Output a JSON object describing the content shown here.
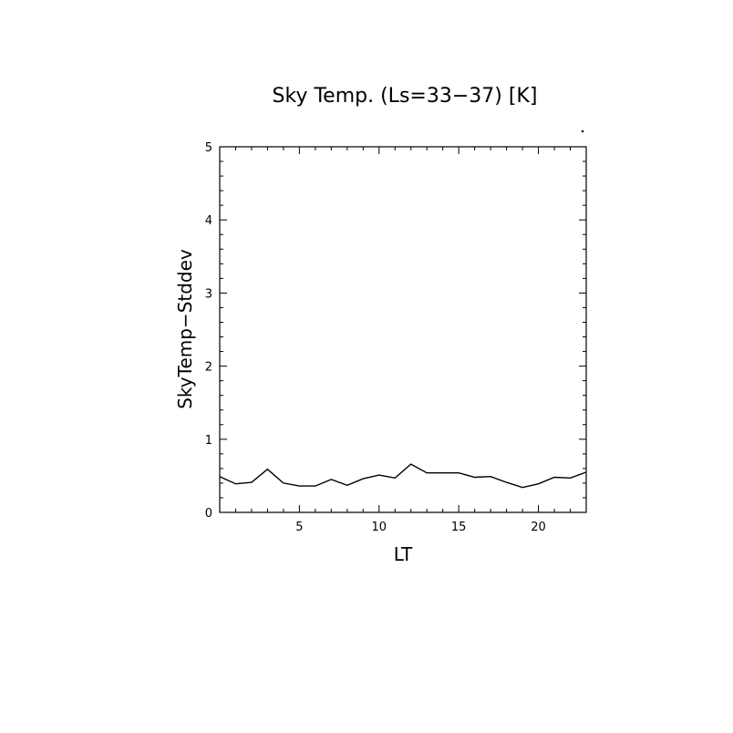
{
  "chart_data": {
    "type": "line",
    "title": "Sky Temp. (Ls=33−37) [K]",
    "xlabel": "LT",
    "ylabel": "SkyTemp−Stddev",
    "xlim": [
      0,
      23
    ],
    "ylim": [
      0,
      5
    ],
    "x_ticks": [
      5,
      10,
      15,
      20
    ],
    "y_ticks": [
      0,
      1,
      2,
      3,
      4,
      5
    ],
    "grid": false,
    "series": [
      {
        "x": [
          0,
          1,
          2,
          3,
          4,
          5,
          6,
          7,
          8,
          9,
          10,
          11,
          12,
          13,
          14,
          15,
          16,
          17,
          18,
          19,
          20,
          21,
          22,
          23
        ],
        "values": [
          0.49,
          0.39,
          0.41,
          0.59,
          0.4,
          0.36,
          0.36,
          0.45,
          0.37,
          0.46,
          0.51,
          0.47,
          0.66,
          0.54,
          0.54,
          0.54,
          0.48,
          0.49,
          0.41,
          0.34,
          0.39,
          0.48,
          0.47,
          0.55
        ],
        "color": "#000000"
      }
    ]
  }
}
